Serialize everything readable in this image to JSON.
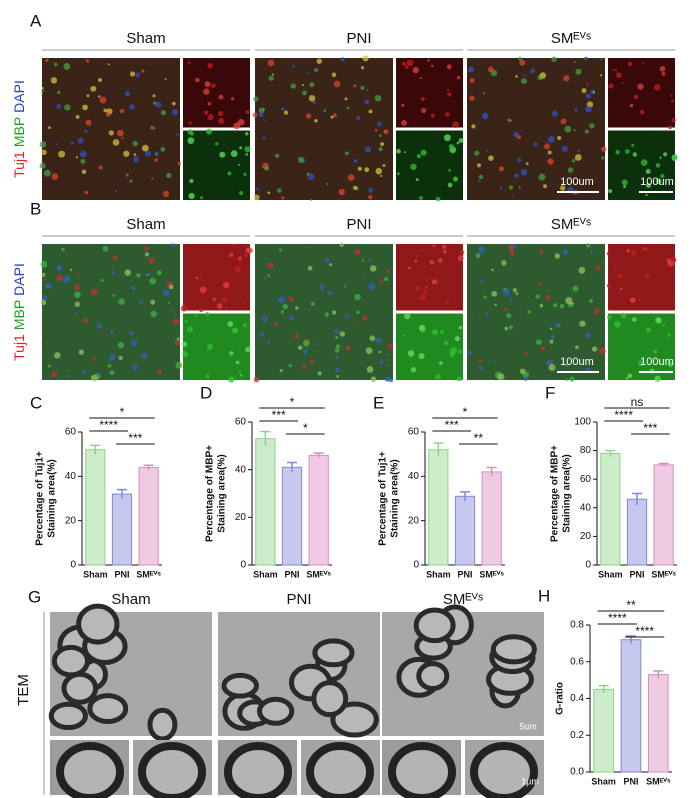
{
  "panels": {
    "A": {
      "label": "A",
      "groups": [
        "Sham",
        "PNI",
        "SMᴱⱽˢ"
      ],
      "stain": [
        "Tuj1",
        "MBP",
        "DAPI"
      ],
      "stain_colors": [
        "#e02020",
        "#20a020",
        "#2040d0"
      ],
      "scale_bars": [
        "100um",
        "100um"
      ]
    },
    "B": {
      "label": "B",
      "groups": [
        "Sham",
        "PNI",
        "SMᴱⱽˢ"
      ],
      "stain": [
        "Tuj1",
        "MBP",
        "DAPI"
      ],
      "stain_colors": [
        "#e02020",
        "#20a020",
        "#2040d0"
      ],
      "scale_bars": [
        "100um",
        "100um"
      ]
    },
    "G": {
      "label": "G",
      "groups": [
        "Sham",
        "PNI",
        "SMᴱⱽˢ"
      ],
      "row_label": "TEM",
      "scale_bars": [
        "5um",
        "1μm"
      ]
    }
  },
  "chart_data": [
    {
      "type": "bar",
      "panel_label": "C",
      "ylabel": [
        "Percentage of Tuj1+",
        "Staining area(%)"
      ],
      "categories": [
        "Sham",
        "PNI",
        "SMᴱⱽˢ"
      ],
      "values": [
        52,
        32,
        44
      ],
      "errors": [
        2,
        2,
        1
      ],
      "colors": [
        "#8fd48a",
        "#8088d8",
        "#d98cc0"
      ],
      "ylim": [
        0,
        60
      ],
      "yticks": [
        0,
        20,
        40,
        60
      ],
      "significance": [
        {
          "from": "Sham",
          "to": "SMᴱⱽˢ",
          "label": "*"
        },
        {
          "from": "Sham",
          "to": "PNI",
          "label": "****"
        },
        {
          "from": "PNI",
          "to": "SMᴱⱽˢ",
          "label": "***"
        }
      ]
    },
    {
      "type": "bar",
      "panel_label": "D",
      "ylabel": [
        "Percentage of MBP+",
        "Staining area(%)"
      ],
      "categories": [
        "Sham",
        "PNI",
        "SMᴱⱽˢ"
      ],
      "values": [
        53,
        41,
        46
      ],
      "errors": [
        3,
        2,
        1
      ],
      "colors": [
        "#8fd48a",
        "#8088d8",
        "#d98cc0"
      ],
      "ylim": [
        0,
        60
      ],
      "yticks": [
        0,
        20,
        40,
        60
      ],
      "significance": [
        {
          "from": "Sham",
          "to": "SMᴱⱽˢ",
          "label": "*"
        },
        {
          "from": "Sham",
          "to": "PNI",
          "label": "***"
        },
        {
          "from": "PNI",
          "to": "SMᴱⱽˢ",
          "label": "*"
        }
      ]
    },
    {
      "type": "bar",
      "panel_label": "E",
      "ylabel": [
        "Percentage of Tuj1+",
        "Staining area(%)"
      ],
      "categories": [
        "Sham",
        "PNI",
        "SMᴱⱽˢ"
      ],
      "values": [
        52,
        31,
        42
      ],
      "errors": [
        3,
        2,
        2
      ],
      "colors": [
        "#8fd48a",
        "#8088d8",
        "#d98cc0"
      ],
      "ylim": [
        0,
        60
      ],
      "yticks": [
        0,
        20,
        40,
        60
      ],
      "significance": [
        {
          "from": "Sham",
          "to": "SMᴱⱽˢ",
          "label": "*"
        },
        {
          "from": "Sham",
          "to": "PNI",
          "label": "***"
        },
        {
          "from": "PNI",
          "to": "SMᴱⱽˢ",
          "label": "**"
        }
      ]
    },
    {
      "type": "bar",
      "panel_label": "F",
      "ylabel": [
        "Percentage of MBP+",
        "Staining area(%)"
      ],
      "categories": [
        "Sham",
        "PNI",
        "SMᴱⱽˢ"
      ],
      "values": [
        78,
        46,
        70
      ],
      "errors": [
        2,
        4,
        1
      ],
      "colors": [
        "#8fd48a",
        "#8088d8",
        "#d98cc0"
      ],
      "ylim": [
        0,
        100
      ],
      "yticks": [
        0,
        20,
        40,
        60,
        80,
        100
      ],
      "significance": [
        {
          "from": "Sham",
          "to": "SMᴱⱽˢ",
          "label": "ns"
        },
        {
          "from": "Sham",
          "to": "PNI",
          "label": "****"
        },
        {
          "from": "PNI",
          "to": "SMᴱⱽˢ",
          "label": "***"
        }
      ]
    },
    {
      "type": "bar",
      "panel_label": "H",
      "ylabel": [
        "G-ratio"
      ],
      "categories": [
        "Sham",
        "PNI",
        "SMᴱⱽˢ"
      ],
      "values": [
        0.45,
        0.72,
        0.53
      ],
      "errors": [
        0.02,
        0.02,
        0.02
      ],
      "colors": [
        "#8fd48a",
        "#8088d8",
        "#d98cc0"
      ],
      "ylim": [
        0,
        0.8
      ],
      "yticks": [
        {
          "value": 0,
          "label": "0.0"
        },
        0.2,
        0.4,
        0.6,
        0.8
      ],
      "significance": [
        {
          "from": "Sham",
          "to": "SMᴱⱽˢ",
          "label": "**"
        },
        {
          "from": "Sham",
          "to": "PNI",
          "label": "****"
        },
        {
          "from": "PNI",
          "to": "SMᴱⱽˢ",
          "label": "****"
        }
      ]
    }
  ]
}
